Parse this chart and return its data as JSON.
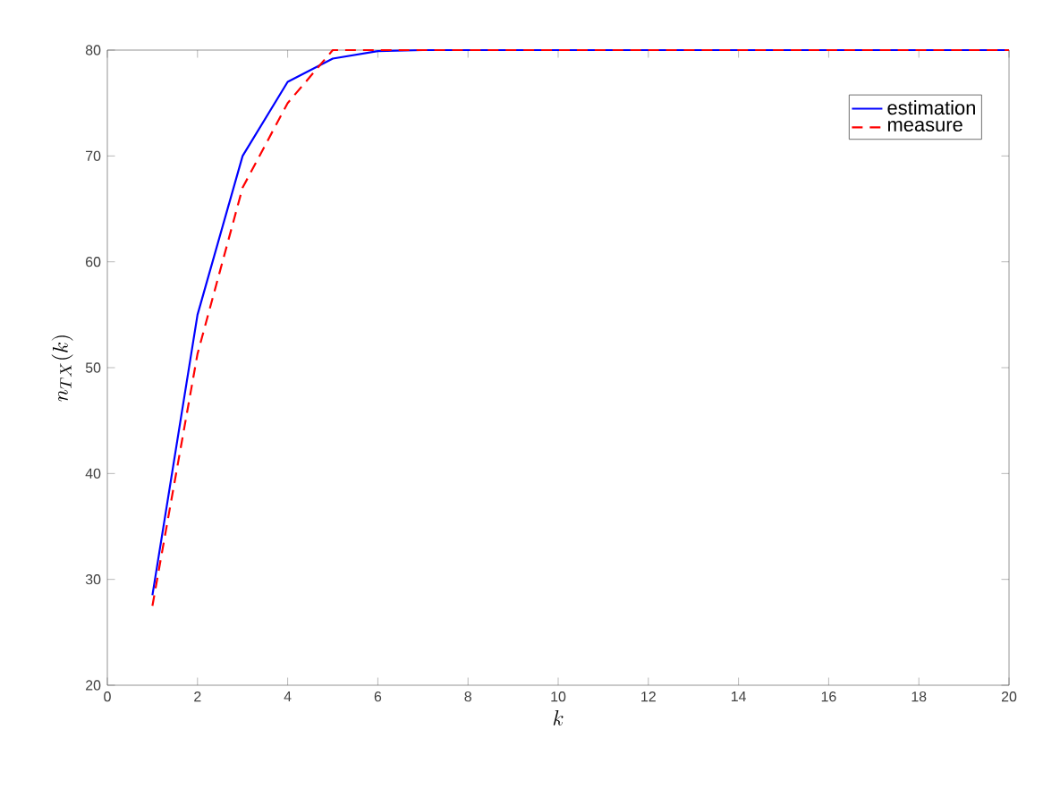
{
  "chart_data": {
    "type": "line",
    "xlabel": "k",
    "ylabel": "n_{TX}(k)",
    "x": [
      1,
      2,
      3,
      4,
      5,
      6,
      7,
      8,
      9,
      10,
      11,
      12,
      13,
      14,
      15,
      16,
      17,
      18,
      19,
      20
    ],
    "series": [
      {
        "name": "estimation",
        "color": "#0000ff",
        "line_style": "solid",
        "values": [
          28.5,
          55,
          70,
          77,
          79.2,
          79.9,
          80,
          80,
          80,
          80,
          80,
          80,
          80,
          80,
          80,
          80,
          80,
          80,
          80,
          80
        ]
      },
      {
        "name": "measure",
        "color": "#ff0000",
        "line_style": "dashed",
        "values": [
          27.5,
          51.3,
          67,
          75,
          80,
          80,
          80,
          80,
          80,
          80,
          80,
          80,
          80,
          80,
          80,
          80,
          80,
          80,
          80,
          80
        ]
      }
    ],
    "xlim": [
      0,
      20
    ],
    "ylim": [
      20,
      80
    ],
    "xticks": [
      0,
      2,
      4,
      6,
      8,
      10,
      12,
      14,
      16,
      18,
      20
    ],
    "yticks": [
      20,
      30,
      40,
      50,
      60,
      70,
      80
    ],
    "grid": false,
    "legend": "top right",
    "marker": "none"
  }
}
